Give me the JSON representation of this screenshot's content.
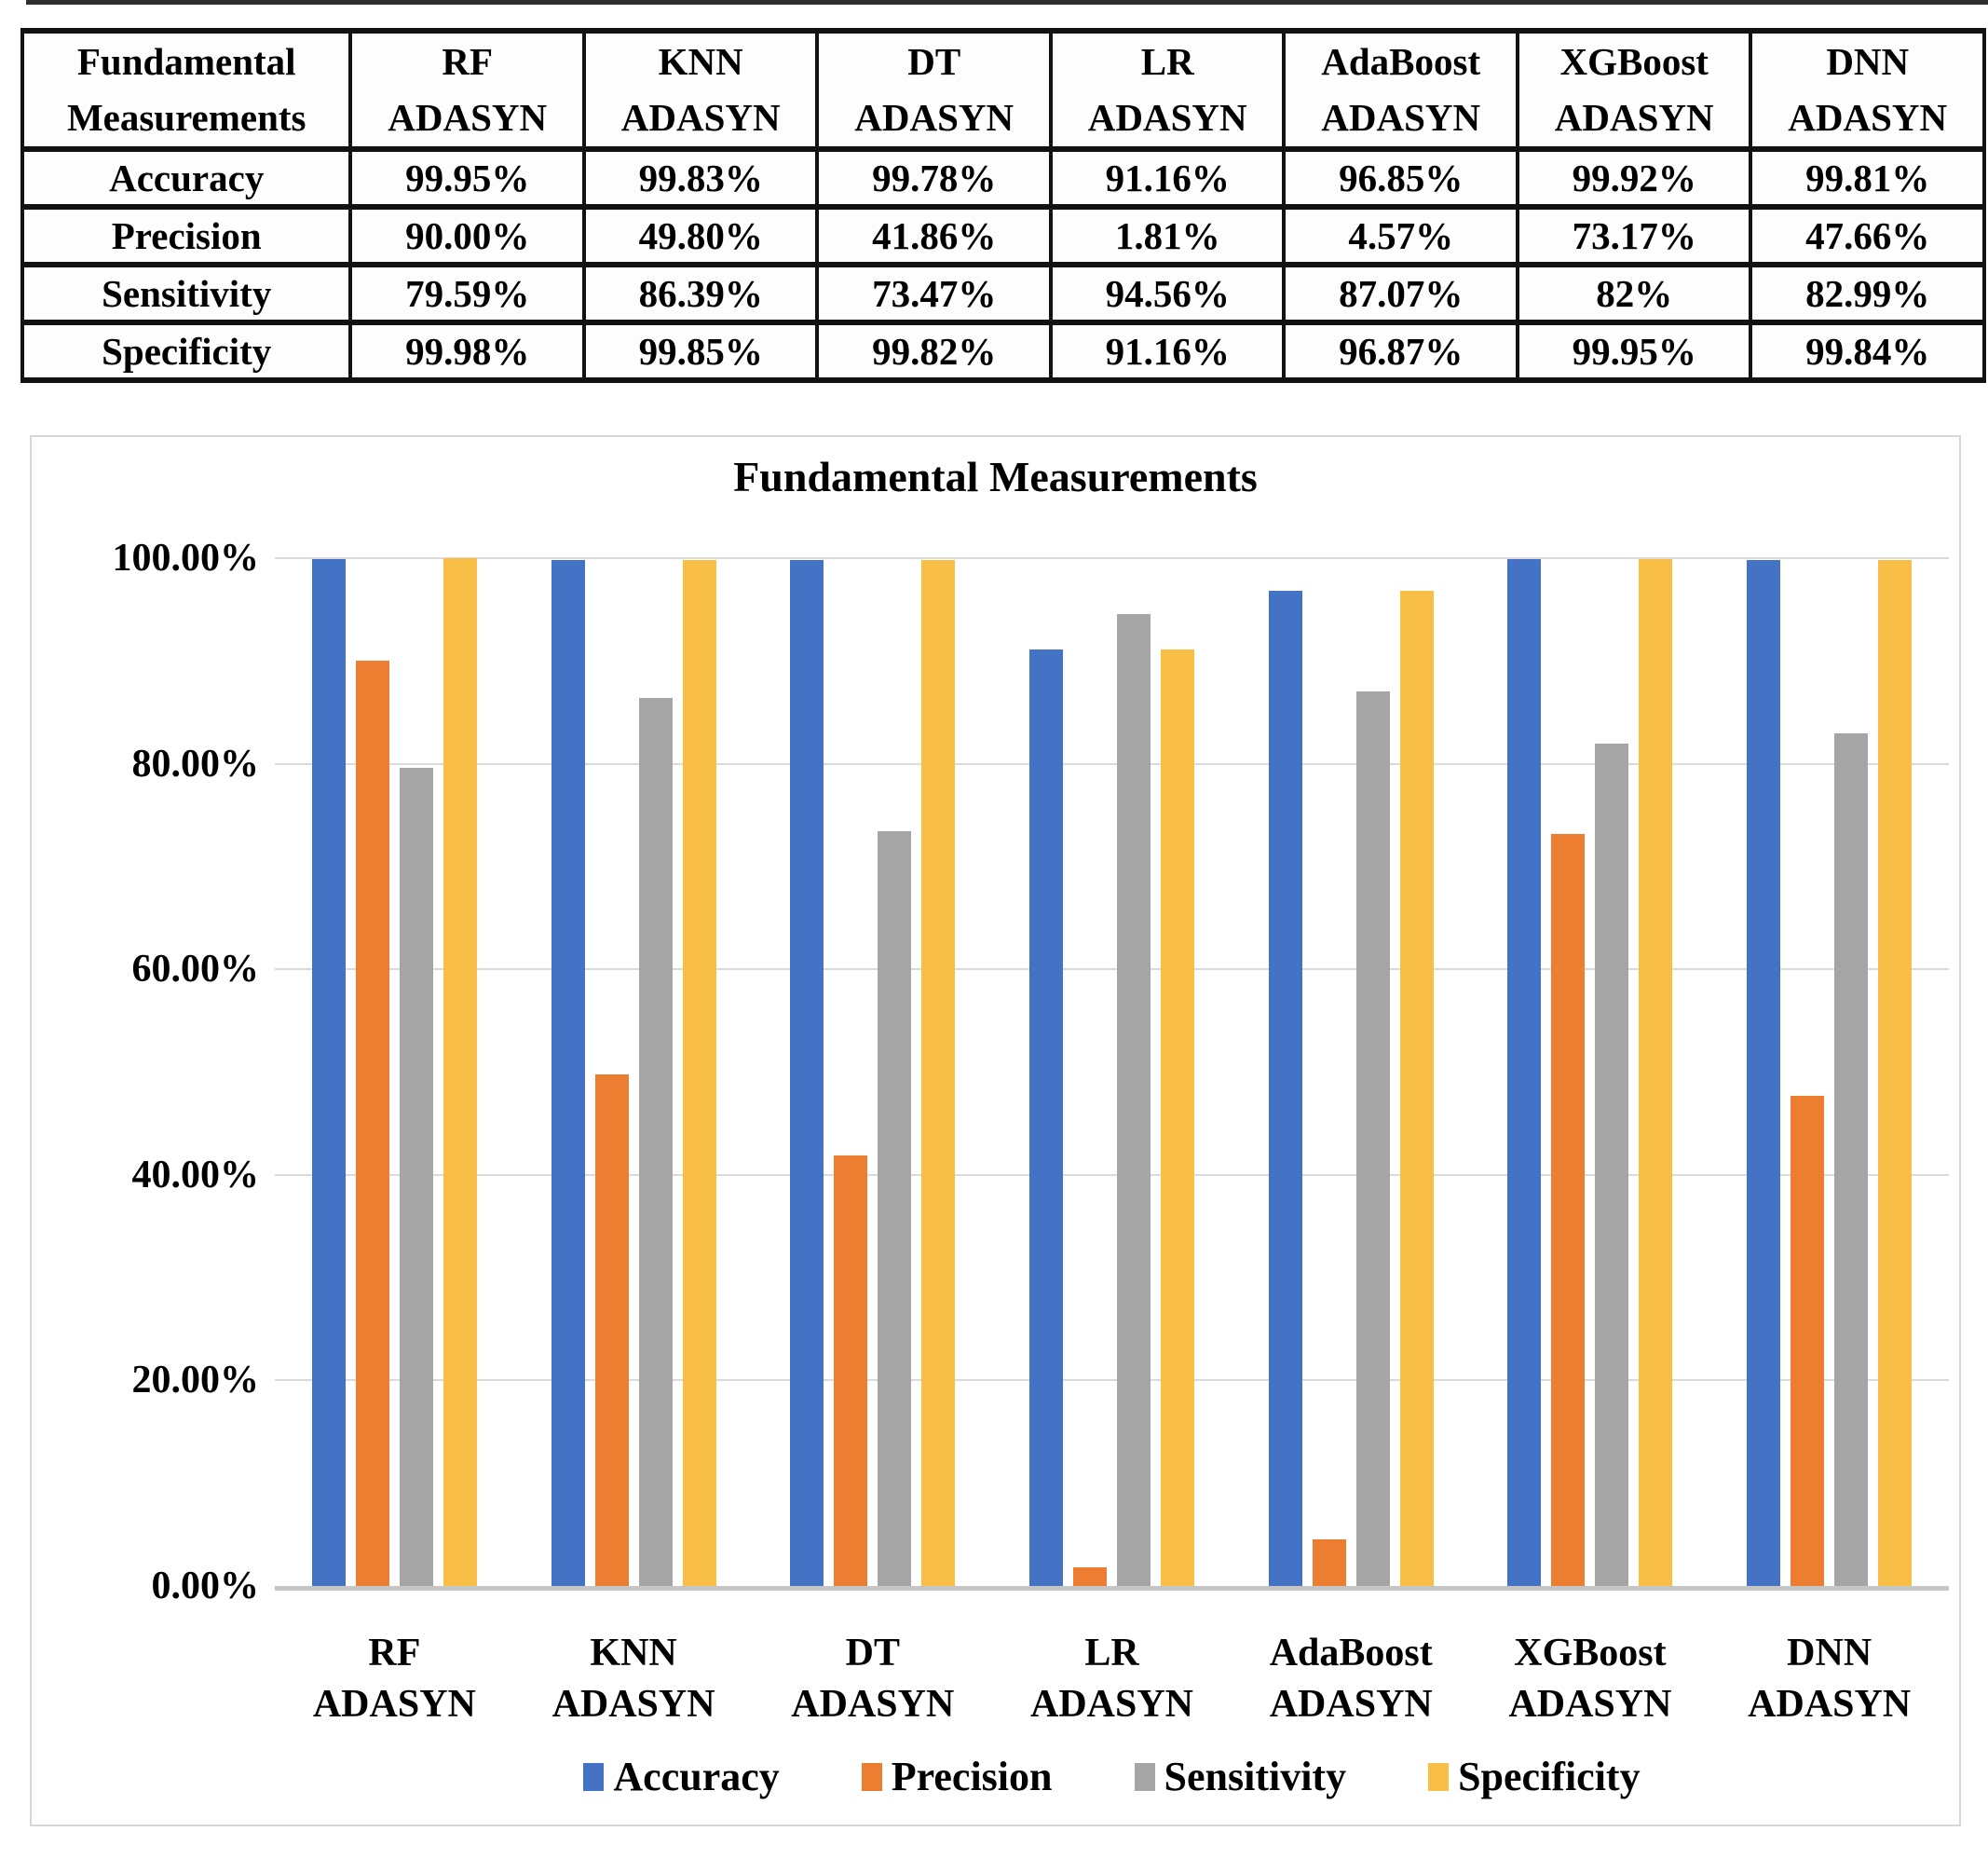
{
  "table": {
    "corner": {
      "line1": "Fundamental",
      "line2": "Measurements"
    },
    "columns": [
      {
        "name": "RF",
        "sub": "ADASYN"
      },
      {
        "name": "KNN",
        "sub": "ADASYN"
      },
      {
        "name": "DT",
        "sub": "ADASYN"
      },
      {
        "name": "LR",
        "sub": "ADASYN"
      },
      {
        "name": "AdaBoost",
        "sub": "ADASYN"
      },
      {
        "name": "XGBoost",
        "sub": "ADASYN"
      },
      {
        "name": "DNN",
        "sub": "ADASYN"
      }
    ],
    "rows": [
      {
        "label": "Accuracy",
        "values": [
          "99.95%",
          "99.83%",
          "99.78%",
          "91.16%",
          "96.85%",
          "99.92%",
          "99.81%"
        ]
      },
      {
        "label": "Precision",
        "values": [
          "90.00%",
          "49.80%",
          "41.86%",
          "1.81%",
          "4.57%",
          "73.17%",
          "47.66%"
        ]
      },
      {
        "label": "Sensitivity",
        "values": [
          "79.59%",
          "86.39%",
          "73.47%",
          "94.56%",
          "87.07%",
          "82%",
          "82.99%"
        ]
      },
      {
        "label": "Specificity",
        "values": [
          "99.98%",
          "99.85%",
          "99.82%",
          "91.16%",
          "96.87%",
          "99.95%",
          "99.84%"
        ]
      }
    ]
  },
  "chart_data": {
    "type": "bar",
    "title": "Fundamental Measurements",
    "categories": [
      [
        "RF",
        "ADASYN"
      ],
      [
        "KNN",
        "ADASYN"
      ],
      [
        "DT",
        "ADASYN"
      ],
      [
        "LR",
        "ADASYN"
      ],
      [
        "AdaBoost",
        "ADASYN"
      ],
      [
        "XGBoost",
        "ADASYN"
      ],
      [
        "DNN",
        "ADASYN"
      ]
    ],
    "series": [
      {
        "name": "Accuracy",
        "color": "#4472C4",
        "values": [
          99.95,
          99.83,
          99.78,
          91.16,
          96.85,
          99.92,
          99.81
        ]
      },
      {
        "name": "Precision",
        "color": "#ED7D31",
        "values": [
          90.0,
          49.8,
          41.86,
          1.81,
          4.57,
          73.17,
          47.66
        ]
      },
      {
        "name": "Sensitivity",
        "color": "#A5A5A5",
        "values": [
          79.59,
          86.39,
          73.47,
          94.56,
          87.07,
          82,
          82.99
        ]
      },
      {
        "name": "Specificity",
        "color": "#F8BE45",
        "values": [
          99.98,
          99.85,
          99.82,
          91.16,
          96.87,
          99.95,
          99.84
        ]
      }
    ],
    "xlabel": "",
    "ylabel": "",
    "ylim": [
      0,
      100
    ],
    "yticks": [
      {
        "value": 100,
        "label": "100.00%"
      },
      {
        "value": 80,
        "label": "80.00%"
      },
      {
        "value": 60,
        "label": "60.00%"
      },
      {
        "value": 40,
        "label": "40.00%"
      },
      {
        "value": 20,
        "label": "20.00%"
      },
      {
        "value": 0,
        "label": "0.00%"
      }
    ],
    "grid": true,
    "legend_position": "bottom"
  }
}
